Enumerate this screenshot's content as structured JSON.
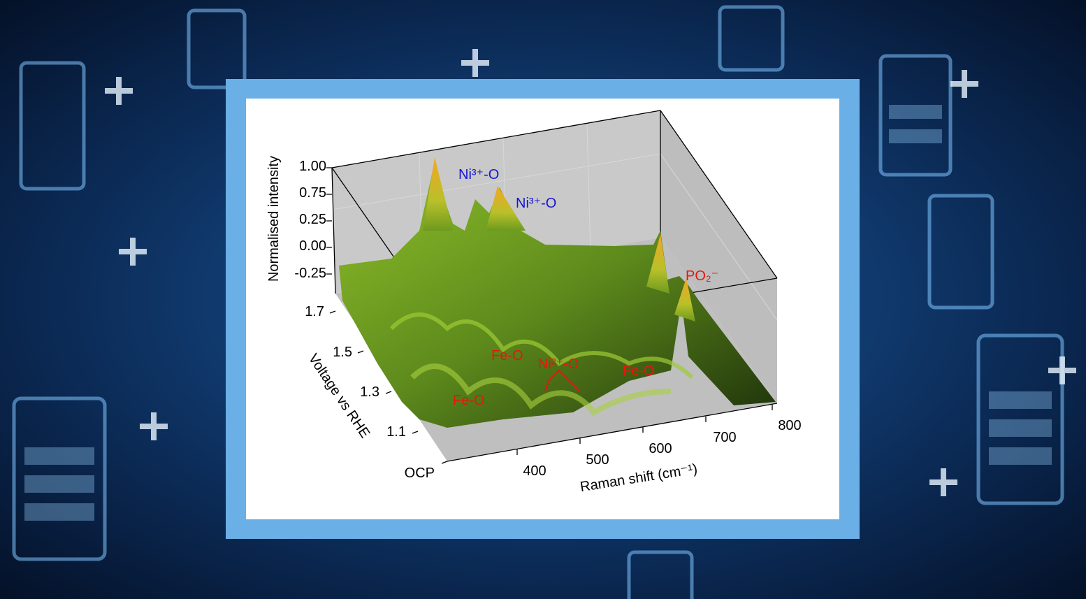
{
  "figure": {
    "z_axis": {
      "label": "Normalised intensity",
      "ticks": [
        "1.00",
        "0.75",
        "0.25",
        "0.00",
        "-0.25"
      ]
    },
    "y_axis": {
      "label": "Voltage vs RHE",
      "ticks": [
        "1.7",
        "1.5",
        "1.3",
        "1.1",
        "OCP"
      ]
    },
    "x_axis": {
      "label": "Raman shift (cm⁻¹)",
      "ticks": [
        "400",
        "500",
        "600",
        "700",
        "800"
      ]
    },
    "annotations": [
      "Ni³⁺-O",
      "Ni³⁺-O",
      "PO₂⁻",
      "Fe-O",
      "Ni²⁺-O",
      "Fe-O",
      "Fe-O"
    ]
  }
}
